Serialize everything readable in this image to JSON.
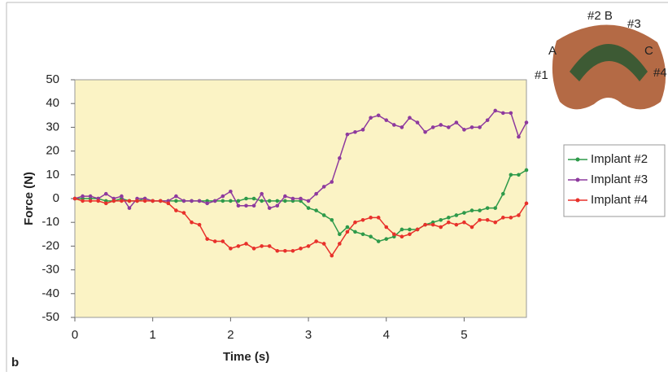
{
  "chart_data": {
    "type": "line",
    "x_label": "Time (s)",
    "y_label": "Force (N)",
    "annotations": [
      "b",
      "#2 B",
      "#3",
      "A",
      "C",
      "#1",
      "#4"
    ],
    "x": [
      0,
      0.1,
      0.2,
      0.3,
      0.4,
      0.5,
      0.6,
      0.7,
      0.8,
      0.9,
      1.0,
      1.1,
      1.2,
      1.3,
      1.4,
      1.5,
      1.6,
      1.7,
      1.8,
      1.9,
      2.0,
      2.1,
      2.2,
      2.3,
      2.4,
      2.5,
      2.6,
      2.7,
      2.8,
      2.9,
      3.0,
      3.1,
      3.2,
      3.3,
      3.4,
      3.5,
      3.6,
      3.7,
      3.8,
      3.9,
      4.0,
      4.1,
      4.2,
      4.3,
      4.4,
      4.5,
      4.6,
      4.7,
      4.8,
      4.9,
      5.0,
      5.1,
      5.2,
      5.3,
      5.4,
      5.5,
      5.6,
      5.7,
      5.8
    ],
    "series": [
      {
        "name": "Implant #2",
        "color": "#2e9a4a",
        "values": [
          0,
          0,
          0,
          0,
          -1,
          -1,
          0,
          -1,
          -1,
          0,
          -1,
          -1,
          -1,
          -1,
          -1,
          -1,
          -1,
          -1,
          -1,
          -1,
          -1,
          -1,
          0,
          0,
          -1,
          -1,
          -1,
          -1,
          -1,
          -1,
          -4,
          -5,
          -7,
          -9,
          -15,
          -12,
          -14,
          -15,
          -16,
          -18,
          -17,
          -16,
          -13,
          -13,
          -13,
          -11,
          -10,
          -9,
          -8,
          -7,
          -6,
          -5,
          -5,
          -4,
          -4,
          2,
          10,
          10,
          12
        ]
      },
      {
        "name": "Implant #3",
        "color": "#8e3a9e",
        "values": [
          0,
          1,
          1,
          0,
          2,
          0,
          1,
          -4,
          0,
          0,
          -1,
          -1,
          -1,
          1,
          -1,
          -1,
          -1,
          -2,
          -1,
          1,
          3,
          -3,
          -3,
          -3,
          2,
          -4,
          -3,
          1,
          0,
          0,
          -1,
          2,
          5,
          7,
          17,
          27,
          28,
          29,
          34,
          35,
          33,
          31,
          30,
          34,
          32,
          28,
          30,
          31,
          30,
          32,
          29,
          30,
          30,
          33,
          37,
          36,
          36,
          26,
          32
        ]
      },
      {
        "name": "Implant #4",
        "color": "#e8312b",
        "values": [
          0,
          -1,
          -1,
          -1,
          -2,
          -1,
          -1,
          -1,
          -1,
          -1,
          -1,
          -1,
          -2,
          -5,
          -6,
          -10,
          -11,
          -17,
          -18,
          -18,
          -21,
          -20,
          -19,
          -21,
          -20,
          -20,
          -22,
          -22,
          -22,
          -21,
          -20,
          -18,
          -19,
          -24,
          -19,
          -14,
          -10,
          -9,
          -8,
          -8,
          -12,
          -15,
          -16,
          -15,
          -13,
          -11,
          -11,
          -12,
          -10,
          -11,
          -10,
          -12,
          -9,
          -9,
          -10,
          -8,
          -8,
          -7,
          -2
        ]
      }
    ],
    "xlim": [
      0,
      5.8
    ],
    "xticks": [
      0,
      1,
      2,
      3,
      4,
      5
    ],
    "ylim": [
      -50,
      50
    ],
    "yticks": [
      -50,
      -40,
      -30,
      -20,
      -10,
      0,
      10,
      20,
      30,
      40,
      50
    ],
    "grid": false,
    "legend": "right"
  }
}
